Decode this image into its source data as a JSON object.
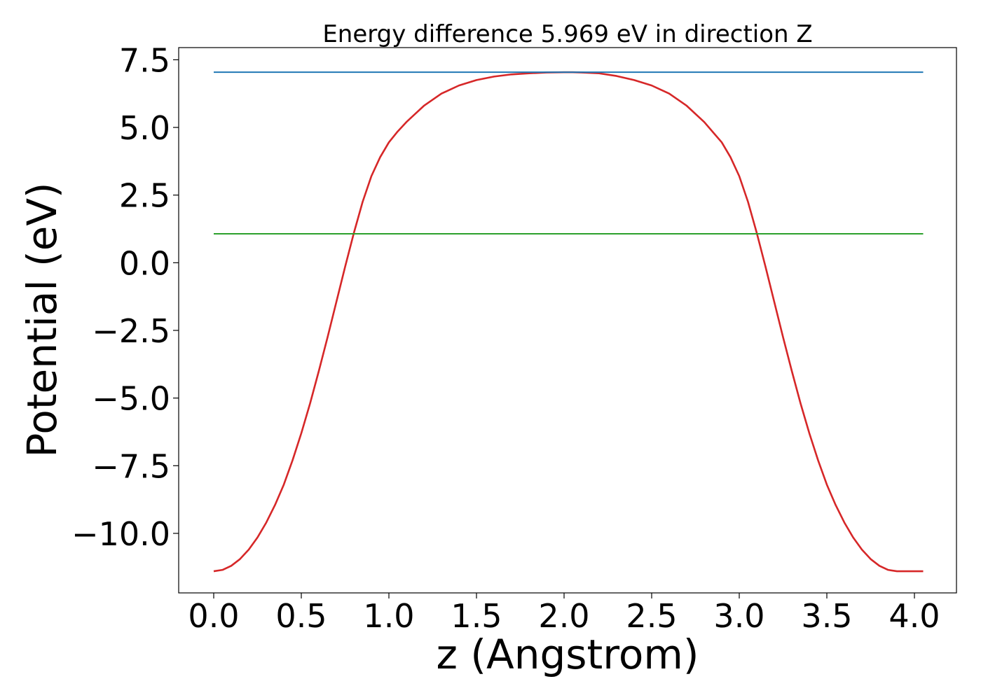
{
  "chart_data": {
    "type": "line",
    "title": "Energy difference 5.969 eV in direction Z",
    "xlabel": "z (Angstrom)",
    "ylabel": "Potential (eV)",
    "xlim": [
      -0.2,
      4.24
    ],
    "ylim": [
      -12.2,
      7.95
    ],
    "xticks": [
      0.0,
      0.5,
      1.0,
      1.5,
      2.0,
      2.5,
      3.0,
      3.5,
      4.0
    ],
    "xtick_labels": [
      "0.0",
      "0.5",
      "1.0",
      "1.5",
      "2.0",
      "2.5",
      "3.0",
      "3.5",
      "4.0"
    ],
    "yticks": [
      7.5,
      5.0,
      2.5,
      0.0,
      -2.5,
      -5.0,
      -7.5,
      -10.0
    ],
    "ytick_labels": [
      "7.5",
      "5.0",
      "2.5",
      "0.0",
      "−2.5",
      "−5.0",
      "−7.5",
      "−10.0"
    ],
    "grid": false,
    "series": [
      {
        "color": "#d62728",
        "x": [
          0.0,
          0.05,
          0.1,
          0.15,
          0.2,
          0.25,
          0.3,
          0.35,
          0.4,
          0.45,
          0.5,
          0.55,
          0.6,
          0.65,
          0.7,
          0.75,
          0.8,
          0.85,
          0.9,
          0.95,
          1.0,
          1.05,
          1.1,
          1.15,
          1.2,
          1.3,
          1.4,
          1.5,
          1.6,
          1.7,
          1.8,
          1.9,
          2.0,
          2.05,
          2.1,
          2.2,
          2.3,
          2.4,
          2.5,
          2.6,
          2.7,
          2.8,
          2.9,
          2.95,
          3.0,
          3.05,
          3.1,
          3.15,
          3.2,
          3.25,
          3.3,
          3.35,
          3.4,
          3.45,
          3.5,
          3.55,
          3.6,
          3.65,
          3.7,
          3.75,
          3.8,
          3.85,
          3.9,
          3.95,
          4.0,
          4.05
        ],
        "y": [
          -11.4,
          -11.35,
          -11.2,
          -10.95,
          -10.6,
          -10.15,
          -9.6,
          -8.95,
          -8.2,
          -7.3,
          -6.3,
          -5.2,
          -4.0,
          -2.75,
          -1.45,
          -0.15,
          1.1,
          2.25,
          3.2,
          3.9,
          4.45,
          4.85,
          5.2,
          5.5,
          5.8,
          6.25,
          6.55,
          6.75,
          6.88,
          6.96,
          7.0,
          7.03,
          7.04,
          7.04,
          7.03,
          7.0,
          6.9,
          6.75,
          6.55,
          6.25,
          5.8,
          5.2,
          4.45,
          3.9,
          3.2,
          2.25,
          1.1,
          -0.15,
          -1.45,
          -2.75,
          -4.0,
          -5.2,
          -6.3,
          -7.3,
          -8.2,
          -8.95,
          -9.6,
          -10.15,
          -10.6,
          -10.95,
          -11.2,
          -11.35,
          -11.4,
          -11.4,
          -11.4,
          -11.4
        ]
      },
      {
        "color": "#1f77b4",
        "x": [
          0.0,
          4.05
        ],
        "y": [
          7.04,
          7.04
        ]
      },
      {
        "color": "#2ca02c",
        "x": [
          0.0,
          4.05
        ],
        "y": [
          1.07,
          1.07
        ]
      }
    ]
  }
}
